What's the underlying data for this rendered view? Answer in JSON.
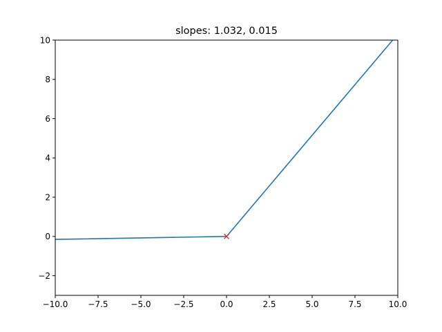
{
  "chart_data": {
    "type": "line",
    "title": "slopes: 1.032, 0.015",
    "xlabel": "",
    "ylabel": "",
    "xlim": [
      -10,
      10
    ],
    "ylim": [
      -3,
      10
    ],
    "xticks": [
      -10,
      -7.5,
      -5,
      -2.5,
      0,
      2.5,
      5,
      7.5,
      10
    ],
    "xtick_labels": [
      "−10.0",
      "−7.5",
      "−5.0",
      "−2.5",
      "0.0",
      "2.5",
      "5.0",
      "7.5",
      "10.0"
    ],
    "yticks": [
      -2,
      0,
      2,
      4,
      6,
      8,
      10
    ],
    "ytick_labels": [
      "−2",
      "0",
      "2",
      "4",
      "6",
      "8",
      "10"
    ],
    "grid": false,
    "series": [
      {
        "color": "#1f77b4",
        "x": [
          -10,
          0,
          9.7
        ],
        "y": [
          -0.15,
          0,
          10
        ]
      }
    ],
    "markers": [
      {
        "symbol": "x",
        "color": "#d62728",
        "x": 0,
        "y": 0
      }
    ]
  }
}
